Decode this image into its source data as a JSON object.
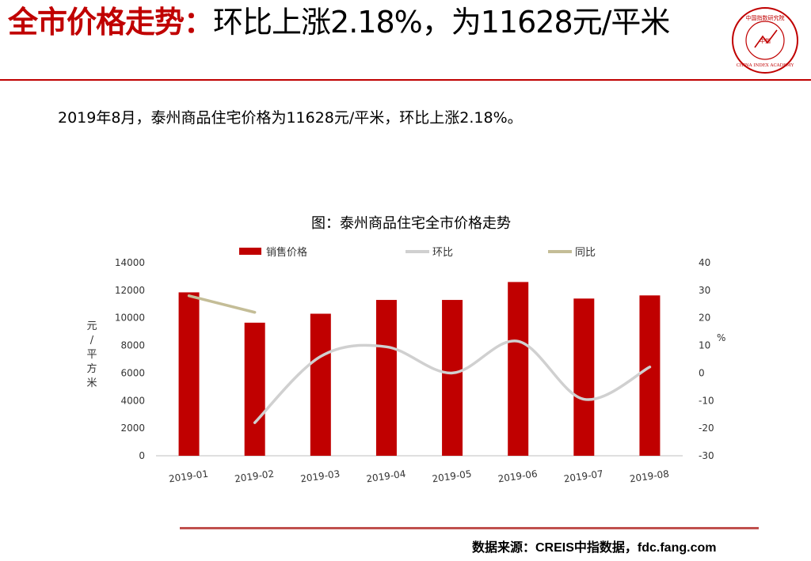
{
  "header": {
    "title_bold": "全市价格走势：",
    "title_rest": "环比上涨2.18%，为11628元/平米"
  },
  "logo": {
    "top_text": "中国指数研究院",
    "center_text": "中指",
    "bottom_text": "CHINA INDEX ACADEMY",
    "color": "#c00000"
  },
  "description": "2019年8月，泰州商品住宅价格为11628元/平米，环比上涨2.18%。",
  "chart_data": {
    "type": "bar",
    "title": "图：泰州商品住宅全市价格走势",
    "categories": [
      "2019-01",
      "2019-02",
      "2019-03",
      "2019-04",
      "2019-05",
      "2019-06",
      "2019-07",
      "2019-08"
    ],
    "series": [
      {
        "name": "销售价格",
        "kind": "bar",
        "axis": "left",
        "color": "#c00000",
        "values": [
          11850,
          9650,
          10300,
          11300,
          11300,
          12600,
          11400,
          11628
        ]
      },
      {
        "name": "环比",
        "kind": "line",
        "axis": "right",
        "color": "#d0d0d0",
        "values": [
          null,
          -18,
          6,
          9.5,
          0,
          11.5,
          -9.5,
          2.18
        ]
      },
      {
        "name": "同比",
        "kind": "line",
        "axis": "right",
        "color": "#c4bd97",
        "values": [
          28,
          22,
          null,
          null,
          null,
          null,
          null,
          null
        ]
      }
    ],
    "ylabel": "元/平方米",
    "ylabel2": "%",
    "ylim": [
      0,
      14000
    ],
    "yticks": [
      "0",
      "2000",
      "4000",
      "6000",
      "8000",
      "10000",
      "12000",
      "14000"
    ],
    "ylim2": [
      -30,
      40
    ],
    "yticks2": [
      "-30",
      "-20",
      "-10",
      "0",
      "10",
      "20",
      "30",
      "40"
    ],
    "legend_position": "top",
    "grid": false
  },
  "source_text": "数据来源：CREIS中指数据，fdc.fang.com"
}
